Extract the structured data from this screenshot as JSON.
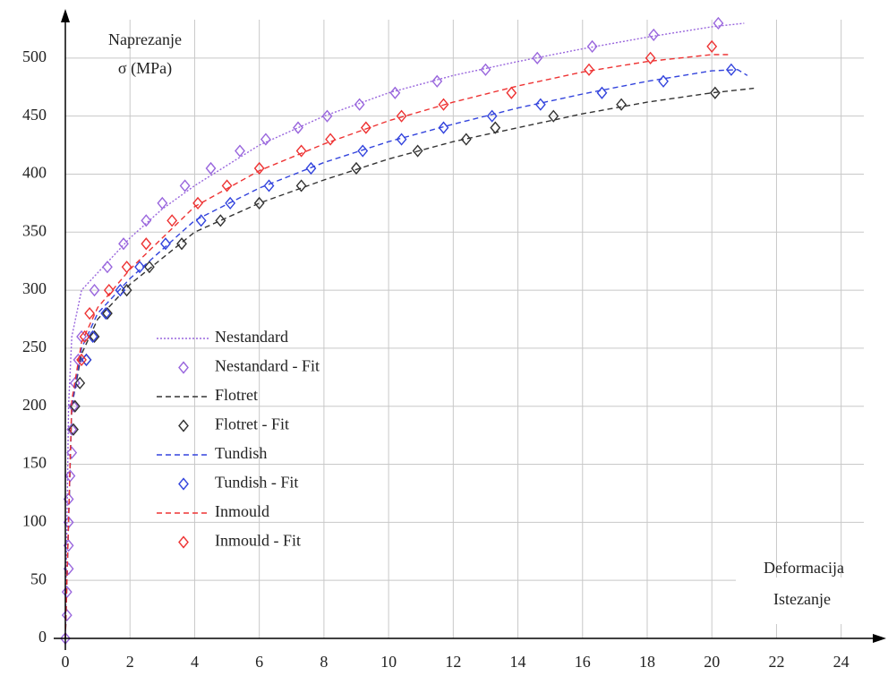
{
  "chart_data": {
    "type": "line",
    "y_label": "Naprezanje",
    "y_label_unit": "σ (MPa)",
    "x_label": "Deformacija",
    "x_label_overlay": "Istezanje",
    "xlim": [
      0,
      25.2
    ],
    "ylim": [
      0,
      540
    ],
    "xticks": [
      0,
      2,
      4,
      6,
      8,
      10,
      12,
      14,
      16,
      18,
      20,
      22,
      24
    ],
    "yticks": [
      0,
      50,
      100,
      150,
      200,
      250,
      300,
      350,
      400,
      450,
      500
    ],
    "grid": true,
    "series": [
      {
        "name": "Nestandard",
        "color": "#9966dd",
        "style": "dotted",
        "x": [
          0,
          0.1,
          0.2,
          0.5,
          1,
          2,
          3,
          4,
          6,
          8,
          10,
          12,
          14,
          16,
          18,
          20,
          21
        ],
        "values": [
          0,
          200,
          260,
          300,
          315,
          345,
          370,
          390,
          425,
          450,
          470,
          485,
          497,
          508,
          518,
          527,
          530
        ]
      },
      {
        "name": "Nestandard - Fit",
        "color": "#9966dd",
        "style": "markers",
        "x": [
          0,
          0.05,
          0.05,
          0.1,
          0.1,
          0.1,
          0.1,
          0.15,
          0.2,
          0.2,
          0.25,
          0.3,
          0.4,
          0.5,
          0.9,
          1.3,
          1.8,
          2.5,
          3,
          3.7,
          4.5,
          5.4,
          6.2,
          7.2,
          8.1,
          9.1,
          10.2,
          11.5,
          13,
          14.6,
          16.3,
          18.2,
          20.2
        ],
        "values": [
          0,
          20,
          40,
          60,
          80,
          100,
          120,
          140,
          160,
          180,
          200,
          220,
          240,
          260,
          300,
          320,
          340,
          360,
          375,
          390,
          405,
          420,
          430,
          440,
          450,
          460,
          470,
          480,
          490,
          500,
          510,
          520,
          530
        ]
      },
      {
        "name": "Flotret",
        "color": "#333333",
        "style": "dashed",
        "x": [
          0,
          0.2,
          0.5,
          1,
          2,
          4,
          6,
          8,
          10,
          12,
          14,
          16,
          18,
          20,
          21.3
        ],
        "values": [
          0,
          200,
          245,
          275,
          305,
          350,
          375,
          395,
          413,
          428,
          440,
          452,
          462,
          470,
          474
        ]
      },
      {
        "name": "Flotret - Fit",
        "color": "#333333",
        "style": "markers",
        "x": [
          0.25,
          0.3,
          0.45,
          0.65,
          0.9,
          1.3,
          1.9,
          2.6,
          3.6,
          4.8,
          6,
          7.3,
          9,
          10.9,
          12.4,
          13.3,
          15.1,
          17.2,
          20.1
        ],
        "values": [
          180,
          200,
          220,
          240,
          260,
          280,
          300,
          320,
          340,
          360,
          375,
          390,
          405,
          420,
          430,
          440,
          450,
          460,
          470
        ]
      },
      {
        "name": "Tundish",
        "color": "#3344dd",
        "style": "dashed",
        "x": [
          0,
          0.2,
          0.5,
          1,
          2,
          4,
          6,
          8,
          10,
          12,
          14,
          16,
          18,
          20,
          20.8,
          21.1
        ],
        "values": [
          0,
          200,
          250,
          280,
          310,
          360,
          388,
          410,
          428,
          443,
          457,
          469,
          480,
          489,
          490,
          485
        ]
      },
      {
        "name": "Tundish - Fit",
        "color": "#3344dd",
        "style": "markers",
        "x": [
          0.65,
          0.85,
          1.25,
          1.7,
          2.3,
          3.1,
          4.2,
          5.1,
          6.3,
          7.6,
          9.2,
          10.4,
          11.7,
          13.2,
          14.7,
          16.6,
          18.5,
          20.6
        ],
        "values": [
          240,
          260,
          280,
          300,
          320,
          340,
          360,
          375,
          390,
          405,
          420,
          430,
          440,
          450,
          460,
          470,
          480,
          490
        ]
      },
      {
        "name": "Inmould",
        "color": "#ee3333",
        "style": "dashed",
        "x": [
          0,
          0.2,
          0.5,
          1,
          2,
          4,
          6,
          8,
          10,
          12,
          14,
          16,
          18,
          20,
          20.5
        ],
        "values": [
          0,
          205,
          255,
          285,
          318,
          372,
          403,
          426,
          446,
          462,
          476,
          488,
          497,
          503,
          503
        ]
      },
      {
        "name": "Inmould - Fit",
        "color": "#ee3333",
        "style": "markers",
        "x": [
          0.5,
          0.6,
          0.75,
          1.35,
          1.9,
          2.5,
          3.3,
          4.1,
          5,
          6,
          7.3,
          8.2,
          9.3,
          10.4,
          11.7,
          13.8,
          16.2,
          18.1,
          20
        ],
        "values": [
          240,
          260,
          280,
          300,
          320,
          340,
          360,
          375,
          390,
          405,
          420,
          430,
          440,
          450,
          460,
          470,
          490,
          500,
          510
        ]
      }
    ]
  }
}
